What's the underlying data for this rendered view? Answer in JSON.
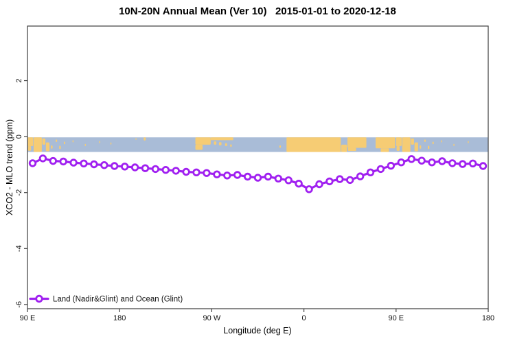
{
  "page": {
    "background": "#ffffff",
    "frame_color": "#3d3d3d"
  },
  "chart_data": {
    "type": "line",
    "title": "10N-20N Annual Mean (Ver 10)   2015-01-01 to 2020-12-18",
    "xlabel": "Longitude (deg E)",
    "ylabel": "XCO2 - MLO trend (ppm)",
    "xlim": [
      90,
      540
    ],
    "ylim": [
      -6.15,
      3.95
    ],
    "grid": false,
    "x_ticks": [
      {
        "value": 90,
        "label": "90 E"
      },
      {
        "value": 180,
        "label": "180"
      },
      {
        "value": 270,
        "label": "90 W"
      },
      {
        "value": 360,
        "label": "0"
      },
      {
        "value": 450,
        "label": "90 E"
      },
      {
        "value": 540,
        "label": "180"
      }
    ],
    "y_ticks": [
      {
        "value": 2,
        "label": "2"
      },
      {
        "value": 0,
        "label": "0"
      },
      {
        "value": -2,
        "label": "-2"
      },
      {
        "value": -4,
        "label": "-4"
      },
      {
        "value": -6,
        "label": "-6"
      }
    ],
    "legend": {
      "position": "bottom-left",
      "entries": [
        {
          "label": "Land (Nadir&Glint) and Ocean (Glint)",
          "color": "#A020F0",
          "marker": "open-circle-line"
        }
      ]
    },
    "series": [
      {
        "name": "Land (Nadir&Glint) and Ocean (Glint)",
        "color": "#A020F0",
        "marker": "open-circle",
        "x": [
          95,
          105,
          115,
          125,
          135,
          145,
          155,
          165,
          175,
          185,
          195,
          205,
          215,
          225,
          235,
          245,
          255,
          265,
          275,
          285,
          295,
          305,
          315,
          325,
          335,
          345,
          355,
          365,
          375,
          385,
          395,
          405,
          415,
          425,
          435,
          445,
          455,
          465,
          475,
          485,
          495,
          505,
          515,
          525,
          535
        ],
        "values": [
          -0.95,
          -0.78,
          -0.87,
          -0.89,
          -0.93,
          -0.96,
          -0.99,
          -1.02,
          -1.05,
          -1.07,
          -1.1,
          -1.13,
          -1.16,
          -1.19,
          -1.22,
          -1.26,
          -1.28,
          -1.3,
          -1.35,
          -1.39,
          -1.37,
          -1.43,
          -1.47,
          -1.43,
          -1.5,
          -1.56,
          -1.68,
          -1.88,
          -1.7,
          -1.6,
          -1.52,
          -1.55,
          -1.42,
          -1.28,
          -1.16,
          -1.04,
          -0.92,
          -0.8,
          -0.86,
          -0.92,
          -0.88,
          -0.95,
          -0.98,
          -0.96,
          -1.05
        ]
      }
    ],
    "map_strip": {
      "note": "coastline band 10N-20N drawn behind the curve",
      "value_top": 0.0,
      "value_bottom": -0.55,
      "ocean_color": "#A9BCD7",
      "land_color": "#F6CC74",
      "land_patches": [
        {
          "x0": 90,
          "x1": 95.5,
          "t": 0.0,
          "b": 0.6
        },
        {
          "x0": 90.5,
          "x1": 93.5,
          "t": 0.6,
          "b": 0.92
        },
        {
          "x0": 96,
          "x1": 104,
          "t": 0.0,
          "b": 1.0
        },
        {
          "x0": 104.5,
          "x1": 107.5,
          "t": 0.08,
          "b": 0.5
        },
        {
          "x0": 108,
          "x1": 111.5,
          "t": 0.35,
          "b": 0.95
        },
        {
          "x0": 113,
          "x1": 114.5,
          "t": 0.55,
          "b": 0.78
        },
        {
          "x0": 117.5,
          "x1": 119,
          "t": 0.15,
          "b": 0.32
        },
        {
          "x0": 121,
          "x1": 122.5,
          "t": 0.58,
          "b": 0.8
        },
        {
          "x0": 125.5,
          "x1": 126.8,
          "t": 0.3,
          "b": 0.47
        },
        {
          "x0": 134,
          "x1": 135,
          "t": 0.2,
          "b": 0.35
        },
        {
          "x0": 146,
          "x1": 147,
          "t": 0.45,
          "b": 0.6
        },
        {
          "x0": 160,
          "x1": 161,
          "t": 0.25,
          "b": 0.4
        },
        {
          "x0": 171,
          "x1": 172,
          "t": 0.35,
          "b": 0.5
        },
        {
          "x0": 195.5,
          "x1": 196.5,
          "t": 0.05,
          "b": 0.18
        },
        {
          "x0": 203.5,
          "x1": 205.5,
          "t": 0.0,
          "b": 0.22
        },
        {
          "x0": 254,
          "x1": 269,
          "t": 0.0,
          "b": 0.5
        },
        {
          "x0": 254,
          "x1": 261,
          "t": 0.5,
          "b": 0.85
        },
        {
          "x0": 269,
          "x1": 291,
          "t": 0.0,
          "b": 0.2
        },
        {
          "x0": 272,
          "x1": 274.5,
          "t": 0.28,
          "b": 0.5
        },
        {
          "x0": 277,
          "x1": 279.5,
          "t": 0.33,
          "b": 0.55
        },
        {
          "x0": 283,
          "x1": 285,
          "t": 0.4,
          "b": 0.6
        },
        {
          "x0": 288,
          "x1": 289.5,
          "t": 0.48,
          "b": 0.65
        },
        {
          "x0": 336,
          "x1": 337.5,
          "t": 0.55,
          "b": 0.72
        },
        {
          "x0": 343,
          "x1": 396,
          "t": 0.0,
          "b": 1.0
        },
        {
          "x0": 396.5,
          "x1": 402,
          "t": 0.5,
          "b": 1.0
        },
        {
          "x0": 402.5,
          "x1": 421,
          "t": 0.0,
          "b": 0.72
        },
        {
          "x0": 403,
          "x1": 411,
          "t": 0.72,
          "b": 0.93
        },
        {
          "x0": 430,
          "x1": 449,
          "t": 0.0,
          "b": 0.75
        },
        {
          "x0": 435,
          "x1": 443,
          "t": 0.75,
          "b": 1.0
        },
        {
          "x0": 450,
          "x1": 455.5,
          "t": 0.0,
          "b": 0.6
        },
        {
          "x0": 450.5,
          "x1": 453.5,
          "t": 0.6,
          "b": 0.92
        },
        {
          "x0": 456,
          "x1": 464,
          "t": 0.0,
          "b": 1.0
        },
        {
          "x0": 464.5,
          "x1": 467.5,
          "t": 0.08,
          "b": 0.5
        },
        {
          "x0": 468,
          "x1": 471.5,
          "t": 0.35,
          "b": 0.95
        },
        {
          "x0": 473,
          "x1": 474.5,
          "t": 0.55,
          "b": 0.78
        },
        {
          "x0": 477.5,
          "x1": 479,
          "t": 0.15,
          "b": 0.32
        },
        {
          "x0": 481,
          "x1": 482.5,
          "t": 0.58,
          "b": 0.8
        },
        {
          "x0": 485.5,
          "x1": 486.8,
          "t": 0.3,
          "b": 0.47
        },
        {
          "x0": 494,
          "x1": 495,
          "t": 0.2,
          "b": 0.35
        },
        {
          "x0": 506,
          "x1": 507,
          "t": 0.45,
          "b": 0.6
        },
        {
          "x0": 520,
          "x1": 521,
          "t": 0.25,
          "b": 0.4
        }
      ]
    }
  }
}
